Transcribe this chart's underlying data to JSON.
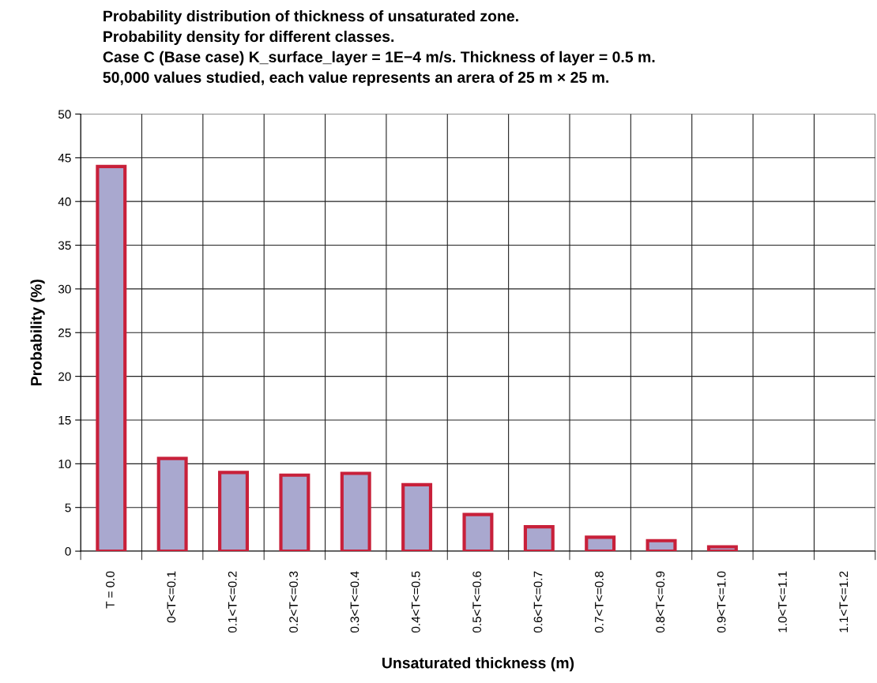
{
  "chart_data": {
    "type": "bar",
    "title": "Probability distribution of thickness of unsaturated zone.\nProbability density for different classes.\nCase C (Base case) K_surface_layer = 1E−4 m/s. Thickness of layer = 0.5 m.\n50,000 values studied, each value represents an arera of 25 m × 25 m.",
    "xlabel": "Unsaturated thickness (m)",
    "ylabel": "Probability (%)",
    "categories": [
      "T = 0.0",
      "0<T<=0.1",
      "0.1<T<=0.2",
      "0.2<T<=0.3",
      "0.3<T<=0.4",
      "0.4<T<=0.5",
      "0.5<T<=0.6",
      "0.6<T<=0.7",
      "0.7<T<=0.8",
      "0.8<T<=0.9",
      "0.9<T<=1.0",
      "1.0<T<=1.1",
      "1.1<T<=1.2"
    ],
    "series": [
      {
        "color": "#a9a8cf",
        "values": [
          44.0,
          10.6,
          9.0,
          8.7,
          8.9,
          7.6,
          4.2,
          2.8,
          1.6,
          1.2,
          0.5,
          0,
          0
        ]
      }
    ],
    "ylim": [
      0,
      50
    ],
    "yticks": [
      0,
      5,
      10,
      15,
      20,
      25,
      30,
      35,
      40,
      45,
      50
    ],
    "grid": true,
    "legend": false
  }
}
